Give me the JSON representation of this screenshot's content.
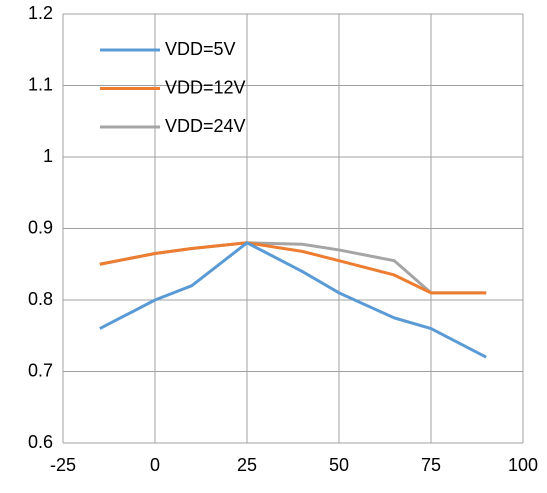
{
  "chart_data": {
    "type": "line",
    "x": [
      -15,
      0,
      10,
      25,
      40,
      50,
      65,
      75,
      90
    ],
    "series": [
      {
        "name": "VDD=5V",
        "color": "#5b9bd5",
        "values": [
          0.76,
          0.8,
          0.82,
          0.88,
          0.84,
          0.81,
          0.775,
          0.76,
          0.72
        ]
      },
      {
        "name": "VDD=12V",
        "color": "#ed7d31",
        "values": [
          0.85,
          0.865,
          0.872,
          0.88,
          0.868,
          0.855,
          0.835,
          0.81,
          0.81
        ]
      },
      {
        "name": "VDD=24V",
        "color": "#a5a5a5",
        "values": [
          0.85,
          0.865,
          0.872,
          0.88,
          0.878,
          0.87,
          0.855,
          0.81,
          0.81
        ]
      }
    ],
    "xlim": [
      -25,
      100
    ],
    "xticks": [
      -25,
      0,
      25,
      50,
      75,
      100
    ],
    "ylim": [
      0.6,
      1.2
    ],
    "yticks": [
      0.6,
      0.7,
      0.8,
      0.9,
      1,
      1.1,
      1.2
    ],
    "grid": true,
    "legend": "upper-left"
  }
}
